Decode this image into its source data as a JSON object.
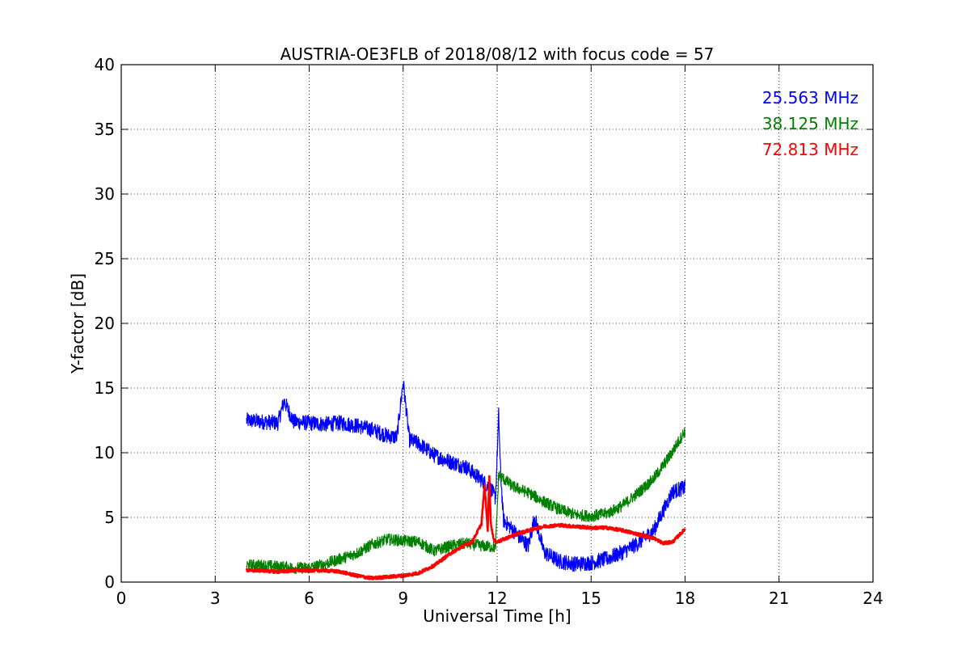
{
  "chart_data": {
    "type": "line",
    "title": "AUSTRIA-OE3FLB of 2018/08/12 with focus code = 57",
    "xlabel": "Universal Time [h]",
    "ylabel": "Y-factor [dB]",
    "xlim": [
      0,
      24
    ],
    "ylim": [
      0,
      40
    ],
    "xticks": [
      0,
      3,
      6,
      9,
      12,
      15,
      18,
      21,
      24
    ],
    "yticks": [
      0,
      5,
      10,
      15,
      20,
      25,
      30,
      35,
      40
    ],
    "grid": true,
    "legend_position": "top-right",
    "series": [
      {
        "name": "25.563 MHz",
        "color": "#0000ff",
        "noise": 0.6,
        "x": [
          4.0,
          4.5,
          5.0,
          5.2,
          5.5,
          6.0,
          6.5,
          7.0,
          7.5,
          8.0,
          8.5,
          8.8,
          9.0,
          9.2,
          9.5,
          10.0,
          10.5,
          11.0,
          11.5,
          11.8,
          11.95,
          12.05,
          12.1,
          12.2,
          12.4,
          12.7,
          13.0,
          13.2,
          13.5,
          14.0,
          14.5,
          15.0,
          15.5,
          16.0,
          16.5,
          17.0,
          17.3,
          17.6,
          18.0
        ],
        "y": [
          12.5,
          12.4,
          12.3,
          14.0,
          12.4,
          12.3,
          12.2,
          12.3,
          12.1,
          11.8,
          11.3,
          11.2,
          15.5,
          11.0,
          10.7,
          9.8,
          9.3,
          8.9,
          7.9,
          7.2,
          6.5,
          13.0,
          9.0,
          4.8,
          4.3,
          3.5,
          2.8,
          5.0,
          2.3,
          1.6,
          1.4,
          1.5,
          1.8,
          2.3,
          3.0,
          4.0,
          5.5,
          7.0,
          7.3
        ]
      },
      {
        "name": "38.125 MHz",
        "color": "#008000",
        "noise": 0.45,
        "x": [
          4.0,
          4.5,
          5.0,
          5.5,
          6.0,
          6.5,
          7.0,
          7.5,
          8.0,
          8.5,
          9.0,
          9.5,
          10.0,
          10.5,
          11.0,
          11.5,
          11.95,
          12.05,
          12.5,
          13.0,
          13.5,
          14.0,
          14.5,
          15.0,
          15.5,
          16.0,
          16.5,
          17.0,
          17.5,
          18.0
        ],
        "y": [
          1.3,
          1.3,
          1.2,
          1.1,
          1.1,
          1.4,
          1.8,
          2.2,
          2.9,
          3.3,
          3.2,
          3.1,
          2.4,
          2.8,
          3.0,
          2.8,
          2.7,
          8.3,
          7.4,
          6.9,
          6.2,
          5.6,
          5.2,
          5.1,
          5.3,
          5.9,
          6.9,
          8.0,
          9.7,
          11.7
        ]
      },
      {
        "name": "72.813 MHz",
        "color": "#ff0000",
        "noise": 0.12,
        "x": [
          4.0,
          4.5,
          5.0,
          5.5,
          6.0,
          6.5,
          7.0,
          7.5,
          8.0,
          8.5,
          9.0,
          9.5,
          10.0,
          10.5,
          11.0,
          11.2,
          11.5,
          11.6,
          11.7,
          11.75,
          11.8,
          11.9,
          12.0,
          12.5,
          13.0,
          13.5,
          14.0,
          14.5,
          15.0,
          15.5,
          16.0,
          16.5,
          17.0,
          17.3,
          17.6,
          18.0
        ],
        "y": [
          0.9,
          0.9,
          0.8,
          0.9,
          0.9,
          0.9,
          0.8,
          0.5,
          0.3,
          0.4,
          0.5,
          0.7,
          1.3,
          2.2,
          2.9,
          3.1,
          4.5,
          7.5,
          4.0,
          8.3,
          4.5,
          3.2,
          3.1,
          3.6,
          4.0,
          4.3,
          4.4,
          4.3,
          4.2,
          4.2,
          4.0,
          3.7,
          3.4,
          3.0,
          3.1,
          4.1
        ]
      }
    ]
  }
}
